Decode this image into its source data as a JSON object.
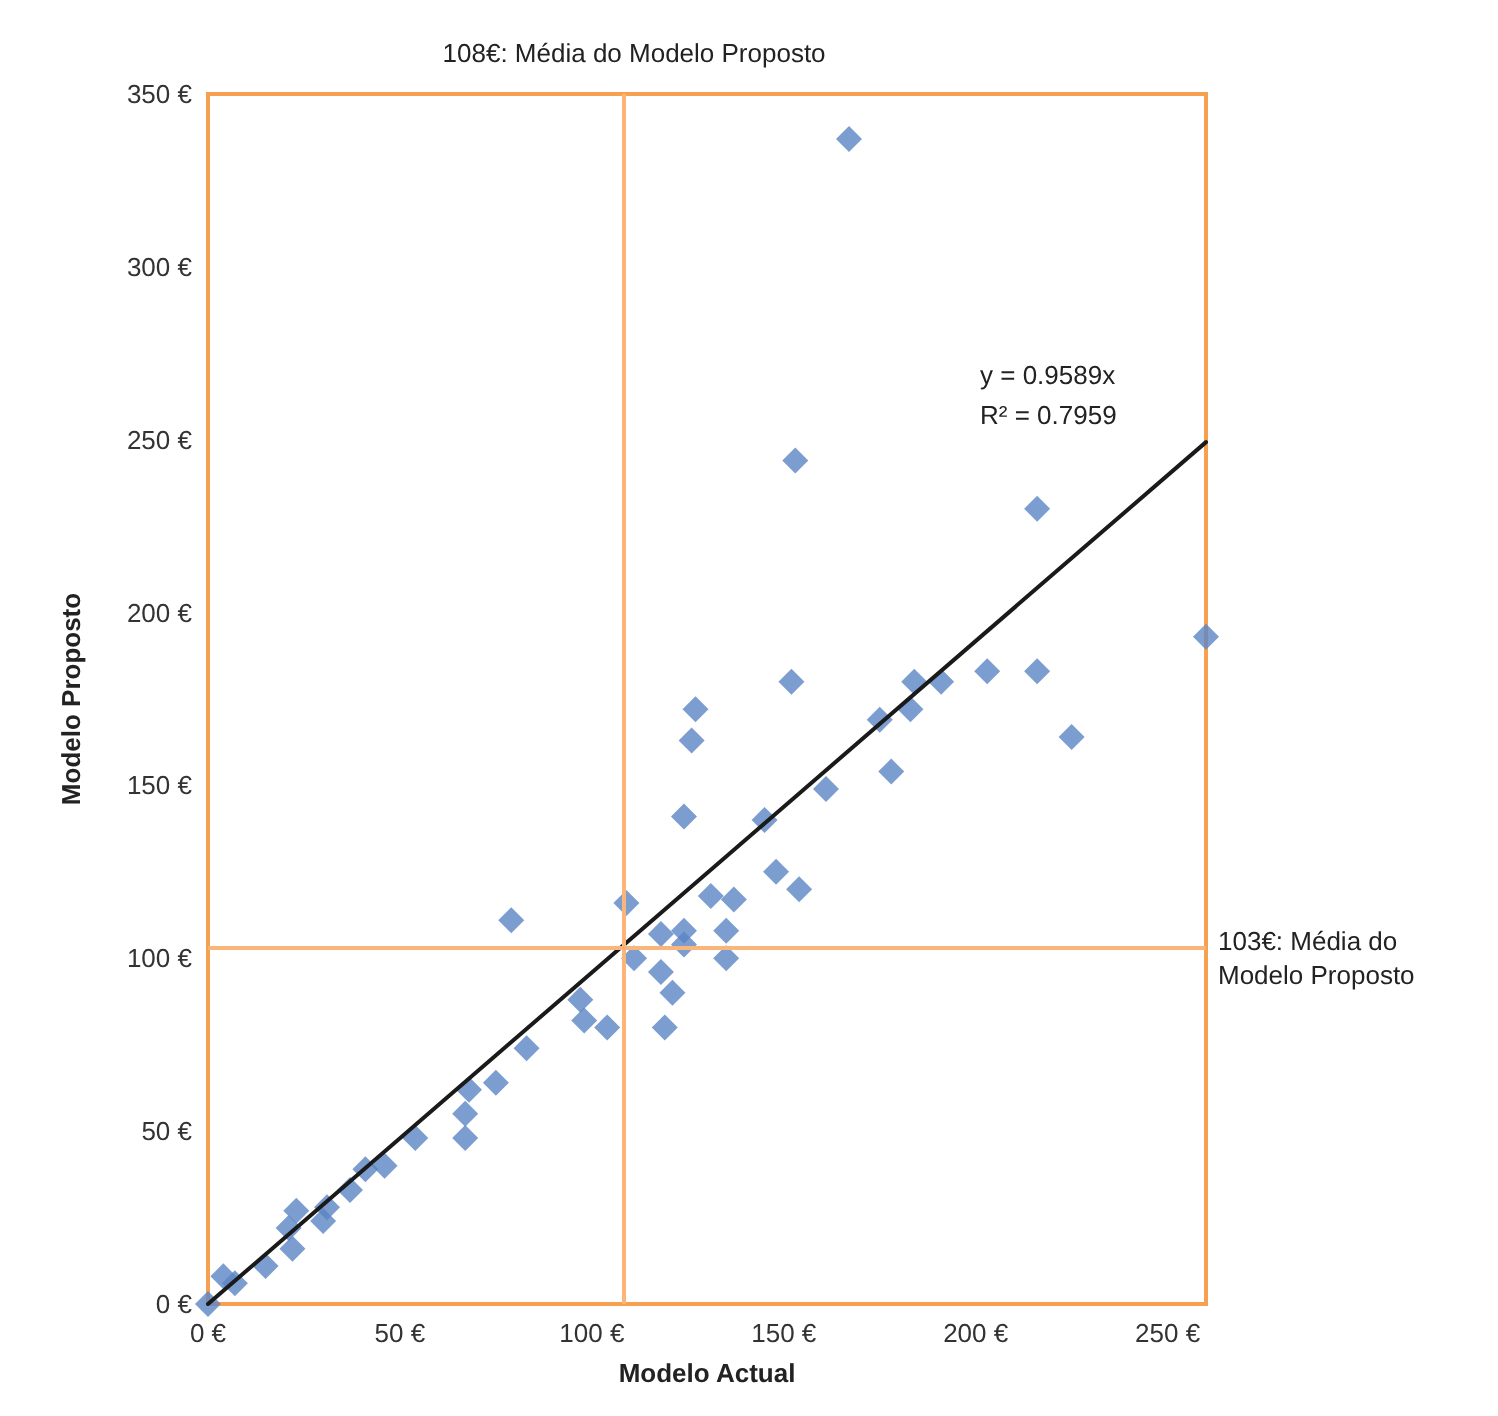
{
  "chart_data": {
    "type": "scatter",
    "xlabel": "Modelo Actual",
    "ylabel": "Modelo Proposto",
    "xlim": [
      0,
      260
    ],
    "ylim": [
      0,
      350
    ],
    "xticks": [
      {
        "value": 0,
        "label": "0 €"
      },
      {
        "value": 50,
        "label": "50 €"
      },
      {
        "value": 100,
        "label": "100 €"
      },
      {
        "value": 150,
        "label": "150 €"
      },
      {
        "value": 200,
        "label": "200 €"
      },
      {
        "value": 250,
        "label": "250 €"
      }
    ],
    "yticks": [
      {
        "value": 0,
        "label": "0 €"
      },
      {
        "value": 50,
        "label": "50 €"
      },
      {
        "value": 100,
        "label": "100 €"
      },
      {
        "value": 150,
        "label": "150 €"
      },
      {
        "value": 200,
        "label": "200 €"
      },
      {
        "value": 250,
        "label": "250 €"
      },
      {
        "value": 300,
        "label": "300 €"
      },
      {
        "value": 350,
        "label": "350 €"
      }
    ],
    "grid": false,
    "marker": "diamond",
    "series": [
      {
        "color": "#5b84c4",
        "x": [
          0,
          4,
          7,
          15,
          22,
          21,
          23,
          30,
          31,
          37,
          41,
          46,
          54,
          67,
          67,
          68,
          75,
          83,
          79,
          97,
          98,
          104,
          109,
          111,
          118,
          119,
          121,
          118,
          124,
          124,
          124,
          126,
          127,
          131,
          137,
          135,
          135,
          145,
          148,
          154,
          152,
          161,
          153,
          216,
          260,
          175,
          184,
          191,
          183,
          203,
          216,
          225,
          178,
          167
        ],
        "values": [
          0,
          8,
          6,
          11,
          16,
          22,
          27,
          24,
          28,
          33,
          39,
          40,
          48,
          48,
          55,
          62,
          64,
          74,
          111,
          88,
          82,
          80,
          116,
          100,
          96,
          80,
          90,
          107,
          108,
          104,
          141,
          163,
          172,
          118,
          117,
          108,
          100,
          140,
          125,
          120,
          180,
          149,
          244,
          230,
          193,
          169,
          180,
          180,
          172,
          183,
          183,
          164,
          154,
          337
        ]
      },
      {
        "type": "line",
        "color": "#1a1a1a",
        "marker": "none",
        "x": [
          0,
          260
        ],
        "values": [
          0,
          249.3
        ]
      }
    ],
    "ref_lines": [
      {
        "axis": "x",
        "value": 108,
        "label": "108€: Média do Modelo Proposto",
        "color": "#f9b57a"
      },
      {
        "axis": "y",
        "value": 103,
        "label": "103€: Média do Modelo Proposto",
        "color": "#f9b57a"
      }
    ],
    "annotations": [
      "y = 0.9589x",
      "R² = 0.7959"
    ]
  }
}
